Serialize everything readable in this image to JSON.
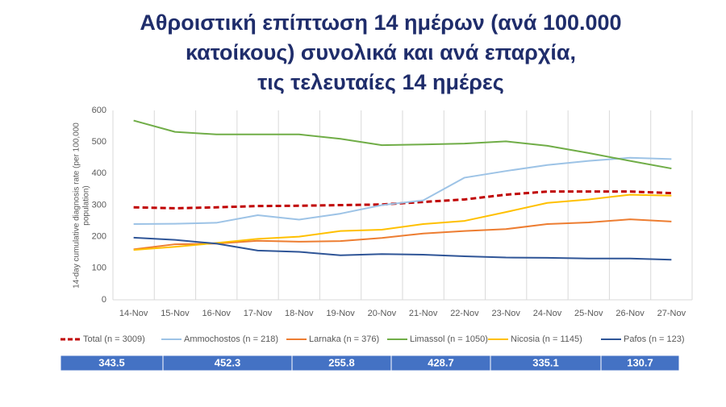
{
  "chart_data": {
    "type": "line",
    "title": [
      "Αθροιστική επίπτωση 14 ημέρων (ανά 100.000",
      "κατοίκους) συνολικά και ανά επαρχία,",
      "τις τελευταίες 14 ημέρες"
    ],
    "ylabel": [
      "14-day cumulative diagnosis rate (per 100,000",
      "population)"
    ],
    "categories": [
      "14-Nov",
      "15-Nov",
      "16-Nov",
      "17-Nov",
      "18-Nov",
      "19-Nov",
      "20-Nov",
      "21-Nov",
      "22-Nov",
      "23-Nov",
      "24-Nov",
      "25-Nov",
      "26-Nov",
      "27-Nov"
    ],
    "ylim": [
      0,
      600
    ],
    "yticks": [
      0,
      100,
      200,
      300,
      400,
      500,
      600
    ],
    "series": [
      {
        "name": "Total (n = 3009)",
        "color": "#c00000",
        "dashed": true,
        "values": [
          293,
          290,
          293,
          297,
          298,
          300,
          302,
          310,
          318,
          333,
          343,
          343,
          343,
          338
        ]
      },
      {
        "name": "Ammochostos (n = 218)",
        "color": "#9dc3e6",
        "values": [
          240,
          241,
          244,
          268,
          254,
          273,
          300,
          315,
          387,
          408,
          427,
          440,
          450,
          446
        ]
      },
      {
        "name": "Larnaka (n = 376)",
        "color": "#ed7d31",
        "values": [
          160,
          176,
          178,
          187,
          184,
          186,
          196,
          210,
          218,
          224,
          240,
          245,
          255,
          248
        ]
      },
      {
        "name": "Limassol (n = 1050)",
        "color": "#70ad47",
        "values": [
          568,
          532,
          524,
          524,
          524,
          510,
          490,
          492,
          495,
          502,
          488,
          465,
          440,
          416
        ]
      },
      {
        "name": "Nicosia (n = 1145)",
        "color": "#ffc000",
        "values": [
          158,
          168,
          180,
          193,
          200,
          218,
          222,
          240,
          250,
          278,
          307,
          318,
          333,
          330
        ]
      },
      {
        "name": "Pafos (n = 123)",
        "color": "#2f5597",
        "values": [
          197,
          190,
          178,
          156,
          152,
          141,
          145,
          143,
          138,
          134,
          133,
          131,
          131,
          127
        ]
      }
    ],
    "summary": [
      343.5,
      452.3,
      255.8,
      428.7,
      335.1,
      130.7
    ],
    "summary_color": "#4472c4"
  }
}
